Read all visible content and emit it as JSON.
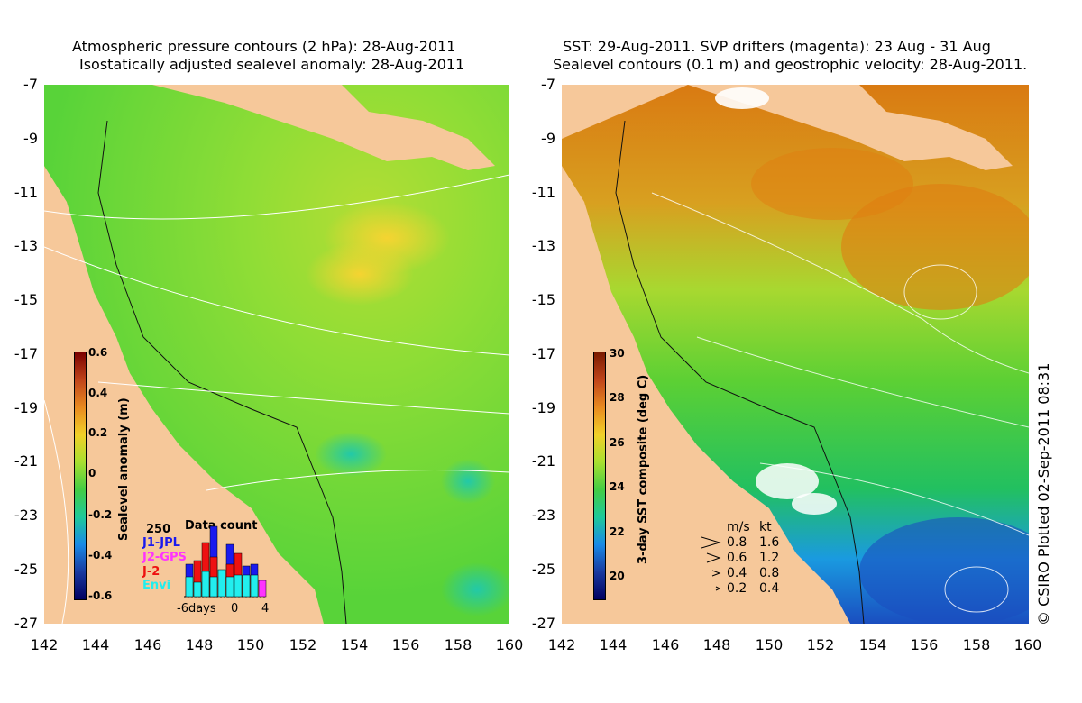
{
  "left": {
    "title_line1": "Atmospheric pressure contours (2 hPa): 28-Aug-2011",
    "title_line2": "Isostatically adjusted sealevel anomaly: 28-Aug-2011",
    "y_ticks": [
      "-7",
      "-9",
      "-11",
      "-13",
      "-15",
      "-17",
      "-19",
      "-21",
      "-23",
      "-25",
      "-27"
    ],
    "x_ticks": [
      "142",
      "144",
      "146",
      "148",
      "150",
      "152",
      "154",
      "156",
      "158",
      "160"
    ],
    "colorbar": {
      "label": "Sealevel anomaly (m)",
      "ticks": [
        "0.6",
        "0.4",
        "0.2",
        "0",
        "-0.2",
        "-0.4",
        "-0.6"
      ],
      "range": [
        -0.6,
        0.6
      ]
    },
    "data_count": {
      "title": "Data count",
      "max_label": "250",
      "sources": [
        {
          "name": "J1-JPL",
          "color": "#1a1aee"
        },
        {
          "name": "J2-GPS",
          "color": "#ff33ff"
        },
        {
          "name": "J-2",
          "color": "#ee1111"
        },
        {
          "name": "Envi",
          "color": "#22eeee"
        }
      ],
      "x_labels": [
        "-6days",
        "0",
        "4"
      ]
    }
  },
  "right": {
    "title_line1": "SST: 29-Aug-2011. SVP drifters (magenta): 23 Aug - 31 Aug",
    "title_line2": "Sealevel contours (0.1 m) and geostrophic velocity: 28-Aug-2011.",
    "y_ticks": [
      "-7",
      "-9",
      "-11",
      "-13",
      "-15",
      "-17",
      "-19",
      "-21",
      "-23",
      "-25",
      "-27"
    ],
    "x_ticks": [
      "142",
      "144",
      "146",
      "148",
      "150",
      "152",
      "154",
      "156",
      "158",
      "160"
    ],
    "colorbar": {
      "label": "3-day SST composite (deg C)",
      "ticks": [
        "30",
        "28",
        "26",
        "24",
        "22",
        "20"
      ],
      "range": [
        19,
        30
      ]
    },
    "velocity_legend": {
      "header_ms": "m/s",
      "header_kt": "kt",
      "rows": [
        {
          "ms": "0.8",
          "kt": "1.6"
        },
        {
          "ms": "0.6",
          "kt": "1.2"
        },
        {
          "ms": "0.4",
          "kt": "0.8"
        },
        {
          "ms": "0.2",
          "kt": "0.4"
        }
      ]
    }
  },
  "credit": "© CSIRO Plotted 02-Sep-2011 08:31",
  "colors": {
    "land": "#f6c89a",
    "slope_green": "#22cc22",
    "warm": "#e07d10",
    "cool": "#1a7ae6"
  }
}
